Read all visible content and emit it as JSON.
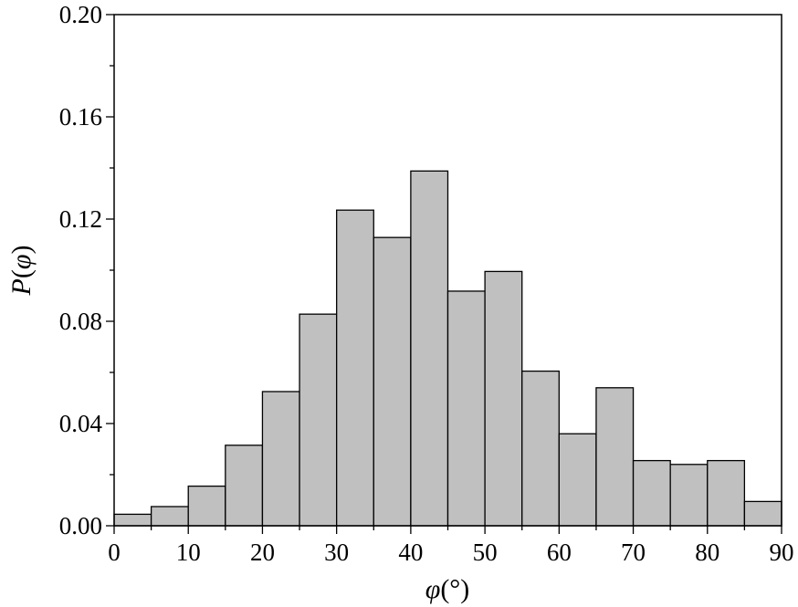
{
  "chart_data": {
    "type": "bar",
    "title": "",
    "bin_width": 5,
    "categories": [
      "0-5",
      "5-10",
      "10-15",
      "15-20",
      "20-25",
      "25-30",
      "30-35",
      "35-40",
      "40-45",
      "45-50",
      "50-55",
      "55-60",
      "60-65",
      "65-70",
      "70-75",
      "75-80",
      "80-85",
      "85-90"
    ],
    "x": [
      0,
      5,
      10,
      15,
      20,
      25,
      30,
      35,
      40,
      45,
      50,
      55,
      60,
      65,
      70,
      75,
      80,
      85
    ],
    "values": [
      0.0045,
      0.0075,
      0.0155,
      0.0315,
      0.0525,
      0.0828,
      0.1235,
      0.1128,
      0.1388,
      0.0918,
      0.0995,
      0.0605,
      0.036,
      0.054,
      0.0255,
      0.024,
      0.0255,
      0.0095
    ],
    "xlabel": {
      "var": "φ",
      "rest": "(°)"
    },
    "ylabel": {
      "var1": "P",
      "open": "(",
      "var2": "φ",
      "close": ")"
    },
    "xlim": [
      0,
      90
    ],
    "ylim": [
      0,
      0.2
    ],
    "x_ticks": [
      "0",
      "10",
      "20",
      "30",
      "40",
      "50",
      "60",
      "70",
      "80",
      "90"
    ],
    "y_ticks": [
      "0.00",
      "0.04",
      "0.08",
      "0.12",
      "0.16",
      "0.20"
    ],
    "x_tick_values": [
      0,
      10,
      20,
      30,
      40,
      50,
      60,
      70,
      80,
      90
    ],
    "y_tick_values": [
      0,
      0.04,
      0.08,
      0.12,
      0.16,
      0.2
    ],
    "bar_color": "#c0c0c0",
    "grid": false,
    "legend": "none"
  }
}
